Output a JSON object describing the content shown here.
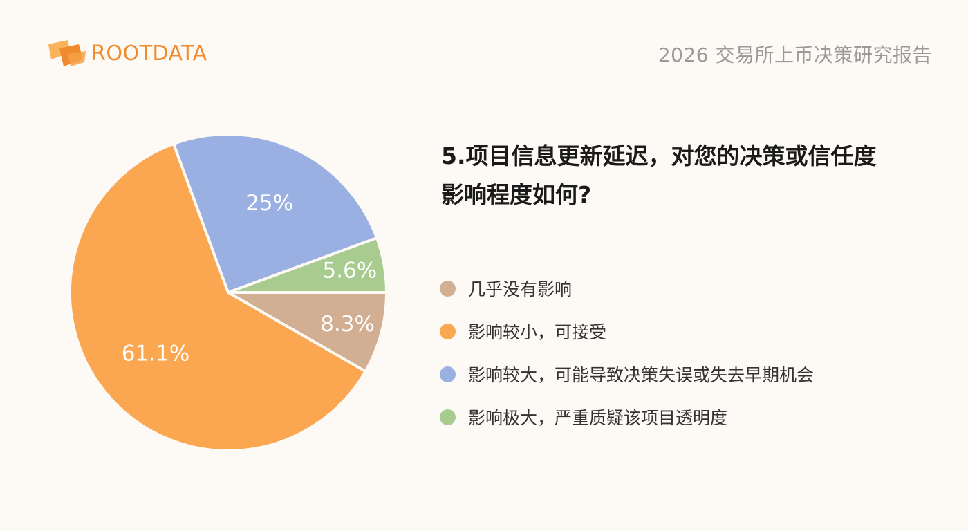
{
  "brand": {
    "name": "ROOTDATA",
    "logo_color": "#f08a2c"
  },
  "report_title": "2026 交易所上币决策研究报告",
  "question": {
    "line1": "5.项目信息更新延迟，对您的决策或信任度",
    "line2": "影响程度如何?"
  },
  "chart_data": {
    "type": "pie",
    "slices": [
      {
        "label": "几乎没有影响",
        "value": 8.3,
        "display": "8.3%",
        "color": "#d2ae93"
      },
      {
        "label": "影响较小，可接受",
        "value": 61.1,
        "display": "61.1%",
        "color": "#fba651"
      },
      {
        "label": "影响较大，可能导致决策失误或失去早期机会",
        "value": 25,
        "display": "25%",
        "color": "#9aafe2"
      },
      {
        "label": "影响极大，严重质疑该项目透明度",
        "value": 5.6,
        "display": "5.6%",
        "color": "#a8cc90"
      }
    ],
    "legend_position": "right"
  }
}
